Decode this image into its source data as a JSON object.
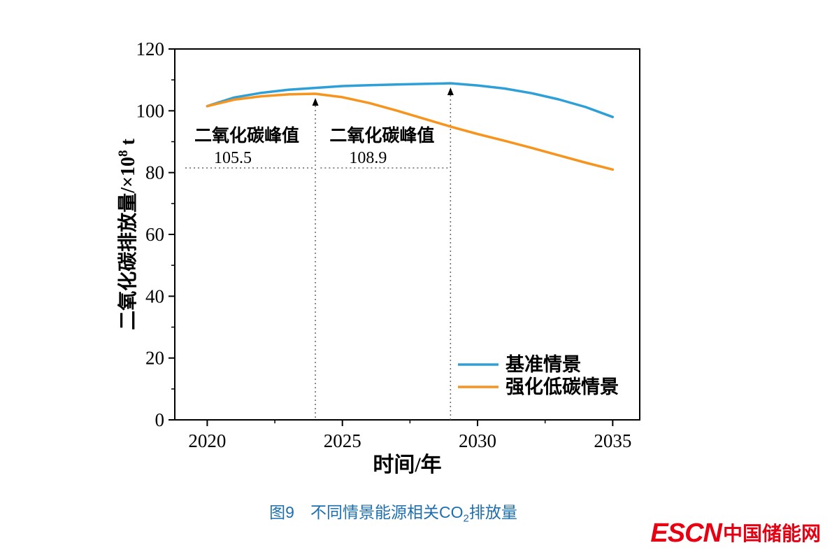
{
  "caption": {
    "prefix": "图9　不同情景能源相关CO",
    "sub": "2",
    "suffix": "排放量"
  },
  "logo": {
    "brand": "ESCN",
    "site_name": "中国储能网",
    "color": "#e60012"
  },
  "chart_data": {
    "type": "line",
    "xlabel": "时间/年",
    "ylabel": "二氧化碳排放量/×10⁸ t",
    "ylabel_parts": {
      "main": "二氧化碳排放量/×10",
      "sup": "8",
      "tail": " t"
    },
    "x": [
      2020,
      2021,
      2022,
      2023,
      2024,
      2025,
      2026,
      2027,
      2028,
      2029,
      2030,
      2031,
      2032,
      2033,
      2034,
      2035
    ],
    "series": [
      {
        "name": "基准情景",
        "color": "#2f9fd8",
        "values": [
          101.5,
          104.3,
          105.8,
          106.8,
          107.4,
          108.0,
          108.3,
          108.5,
          108.7,
          108.9,
          108.2,
          107.2,
          105.7,
          103.7,
          101.2,
          98.0
        ]
      },
      {
        "name": "强化低碳情景",
        "color": "#f6941e",
        "values": [
          101.5,
          103.6,
          104.7,
          105.3,
          105.5,
          104.4,
          102.5,
          100.1,
          97.5,
          94.9,
          92.5,
          90.3,
          88.0,
          85.6,
          83.2,
          81.0
        ]
      }
    ],
    "xlim": [
      2018.8,
      2036.0
    ],
    "ylim": [
      0,
      120
    ],
    "xticks": [
      2020,
      2025,
      2030,
      2035
    ],
    "yticks": [
      0,
      20,
      40,
      60,
      80,
      100,
      120
    ],
    "grid": false,
    "legend_position": "inside lower-right",
    "annotations": [
      {
        "label": "二氧化碳峰值",
        "value": "105.5",
        "x": 2024,
        "y": 105.5
      },
      {
        "label": "二氧化碳峰值",
        "value": "108.9",
        "x": 2029,
        "y": 108.9
      }
    ]
  }
}
